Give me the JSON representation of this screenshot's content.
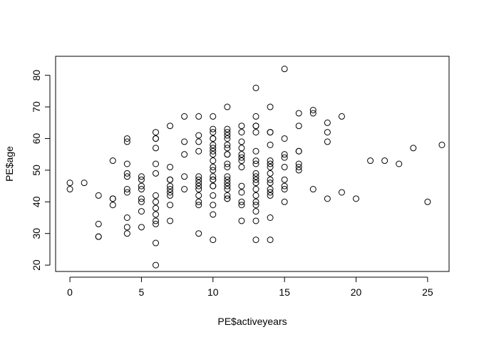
{
  "chart_data": {
    "type": "scatter",
    "title": "",
    "xlabel": "PE$activeyears",
    "ylabel": "PE$age",
    "xlim": [
      -1,
      26.5
    ],
    "ylim": [
      18,
      86
    ],
    "x_ticks": [
      0,
      5,
      10,
      15,
      20,
      25
    ],
    "y_ticks": [
      20,
      30,
      40,
      50,
      60,
      70,
      80
    ],
    "x_tick_labels": [
      "0",
      "5",
      "10",
      "15",
      "20",
      "25"
    ],
    "y_tick_labels": [
      "20",
      "30",
      "40",
      "50",
      "60",
      "70",
      "80"
    ],
    "grid": false,
    "legend": "none",
    "marker": "open-circle",
    "colors": {
      "marker": "#000000",
      "axis": "#000000",
      "background": "#ffffff"
    },
    "points": [
      [
        0,
        46
      ],
      [
        0,
        44
      ],
      [
        1,
        46
      ],
      [
        2,
        42
      ],
      [
        2,
        33
      ],
      [
        2,
        29
      ],
      [
        2,
        29
      ],
      [
        3,
        53
      ],
      [
        3,
        41
      ],
      [
        3,
        41
      ],
      [
        3,
        39
      ],
      [
        4,
        60
      ],
      [
        4,
        59
      ],
      [
        4,
        52
      ],
      [
        4,
        49
      ],
      [
        4,
        48
      ],
      [
        4,
        44
      ],
      [
        4,
        43
      ],
      [
        4,
        35
      ],
      [
        4,
        32
      ],
      [
        4,
        30
      ],
      [
        5,
        48
      ],
      [
        5,
        47
      ],
      [
        5,
        45
      ],
      [
        5,
        44
      ],
      [
        5,
        41
      ],
      [
        5,
        40
      ],
      [
        5,
        37
      ],
      [
        5,
        32
      ],
      [
        6,
        62
      ],
      [
        6,
        60
      ],
      [
        6,
        60
      ],
      [
        6,
        57
      ],
      [
        6,
        52
      ],
      [
        6,
        49
      ],
      [
        6,
        42
      ],
      [
        6,
        40
      ],
      [
        6,
        38
      ],
      [
        6,
        36
      ],
      [
        6,
        34
      ],
      [
        6,
        33
      ],
      [
        6,
        27
      ],
      [
        6,
        20
      ],
      [
        7,
        64
      ],
      [
        7,
        51
      ],
      [
        7,
        47
      ],
      [
        7,
        47
      ],
      [
        7,
        45
      ],
      [
        7,
        44
      ],
      [
        7,
        43
      ],
      [
        7,
        42
      ],
      [
        7,
        39
      ],
      [
        7,
        34
      ],
      [
        8,
        67
      ],
      [
        8,
        59
      ],
      [
        8,
        55
      ],
      [
        8,
        48
      ],
      [
        8,
        44
      ],
      [
        9,
        67
      ],
      [
        9,
        61
      ],
      [
        9,
        59
      ],
      [
        9,
        56
      ],
      [
        9,
        48
      ],
      [
        9,
        47
      ],
      [
        9,
        46
      ],
      [
        9,
        45
      ],
      [
        9,
        44
      ],
      [
        9,
        42
      ],
      [
        9,
        40
      ],
      [
        9,
        39
      ],
      [
        9,
        30
      ],
      [
        10,
        67
      ],
      [
        10,
        63
      ],
      [
        10,
        62
      ],
      [
        10,
        60
      ],
      [
        10,
        60
      ],
      [
        10,
        58
      ],
      [
        10,
        57
      ],
      [
        10,
        56
      ],
      [
        10,
        55
      ],
      [
        10,
        53
      ],
      [
        10,
        51
      ],
      [
        10,
        50
      ],
      [
        10,
        48
      ],
      [
        10,
        47
      ],
      [
        10,
        47
      ],
      [
        10,
        45
      ],
      [
        10,
        45
      ],
      [
        10,
        42
      ],
      [
        10,
        39
      ],
      [
        10,
        36
      ],
      [
        10,
        28
      ],
      [
        11,
        70
      ],
      [
        11,
        63
      ],
      [
        11,
        62
      ],
      [
        11,
        61
      ],
      [
        11,
        60
      ],
      [
        11,
        58
      ],
      [
        11,
        57
      ],
      [
        11,
        55
      ],
      [
        11,
        55
      ],
      [
        11,
        52
      ],
      [
        11,
        51
      ],
      [
        11,
        48
      ],
      [
        11,
        47
      ],
      [
        11,
        46
      ],
      [
        11,
        45
      ],
      [
        11,
        44
      ],
      [
        11,
        42
      ],
      [
        11,
        41
      ],
      [
        11,
        41
      ],
      [
        12,
        64
      ],
      [
        12,
        62
      ],
      [
        12,
        59
      ],
      [
        12,
        57
      ],
      [
        12,
        55
      ],
      [
        12,
        54
      ],
      [
        12,
        53
      ],
      [
        12,
        51
      ],
      [
        12,
        45
      ],
      [
        12,
        43
      ],
      [
        12,
        40
      ],
      [
        12,
        39
      ],
      [
        12,
        34
      ],
      [
        13,
        76
      ],
      [
        13,
        67
      ],
      [
        13,
        64
      ],
      [
        13,
        64
      ],
      [
        13,
        62
      ],
      [
        13,
        56
      ],
      [
        13,
        53
      ],
      [
        13,
        52
      ],
      [
        13,
        49
      ],
      [
        13,
        48
      ],
      [
        13,
        47
      ],
      [
        13,
        46
      ],
      [
        13,
        44
      ],
      [
        13,
        42
      ],
      [
        13,
        40
      ],
      [
        13,
        39
      ],
      [
        13,
        37
      ],
      [
        13,
        34
      ],
      [
        13,
        28
      ],
      [
        14,
        70
      ],
      [
        14,
        62
      ],
      [
        14,
        62
      ],
      [
        14,
        58
      ],
      [
        14,
        53
      ],
      [
        14,
        52
      ],
      [
        14,
        51
      ],
      [
        14,
        49
      ],
      [
        14,
        47
      ],
      [
        14,
        46
      ],
      [
        14,
        44
      ],
      [
        14,
        43
      ],
      [
        14,
        42
      ],
      [
        14,
        35
      ],
      [
        14,
        28
      ],
      [
        15,
        82
      ],
      [
        15,
        60
      ],
      [
        15,
        55
      ],
      [
        15,
        54
      ],
      [
        15,
        51
      ],
      [
        15,
        47
      ],
      [
        15,
        45
      ],
      [
        15,
        44
      ],
      [
        15,
        40
      ],
      [
        16,
        68
      ],
      [
        16,
        64
      ],
      [
        16,
        56
      ],
      [
        16,
        56
      ],
      [
        16,
        52
      ],
      [
        16,
        51
      ],
      [
        16,
        50
      ],
      [
        17,
        69
      ],
      [
        17,
        68
      ],
      [
        17,
        44
      ],
      [
        18,
        65
      ],
      [
        18,
        62
      ],
      [
        18,
        59
      ],
      [
        18,
        41
      ],
      [
        19,
        67
      ],
      [
        19,
        43
      ],
      [
        20,
        41
      ],
      [
        21,
        53
      ],
      [
        22,
        53
      ],
      [
        23,
        52
      ],
      [
        24,
        57
      ],
      [
        25,
        40
      ],
      [
        26,
        58
      ]
    ]
  }
}
